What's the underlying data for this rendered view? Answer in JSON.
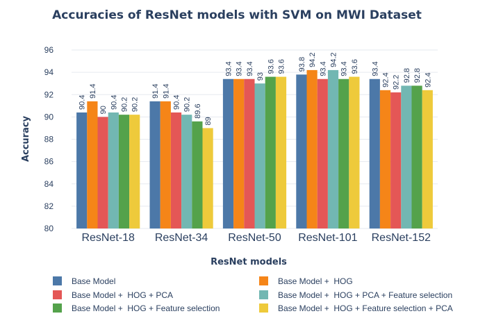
{
  "chart_data": {
    "type": "bar",
    "title": "Accuracies of ResNet models with SVM on MWI Dataset",
    "xlabel": "ResNet models",
    "ylabel": "Accuracy",
    "ylim": [
      80,
      96
    ],
    "yticks": [
      80,
      82,
      84,
      86,
      88,
      90,
      92,
      94,
      96
    ],
    "grid": true,
    "legend_position": "bottom",
    "categories": [
      "ResNet-18",
      "ResNet-34",
      "ResNet-50",
      "ResNet-101",
      "ResNet-152"
    ],
    "series": [
      {
        "name": "Base Model",
        "color": "#4c78a8",
        "values": [
          90.4,
          91.4,
          93.4,
          93.8,
          93.4
        ],
        "labels": [
          "90.4",
          "91.4",
          "93.4",
          "93.8",
          "93.4"
        ]
      },
      {
        "name": "Base Model +  HOG",
        "color": "#f58518",
        "values": [
          91.4,
          91.4,
          93.4,
          94.2,
          92.4
        ],
        "labels": [
          "91.4",
          "91.4",
          "93.4",
          "94.2",
          "92.4"
        ]
      },
      {
        "name": "Base Model +  HOG + PCA",
        "color": "#e45756",
        "values": [
          90,
          90.4,
          93.4,
          93.4,
          92.2
        ],
        "labels": [
          "90",
          "90.4",
          "93.4",
          "93.4",
          "92.2"
        ]
      },
      {
        "name": "Base Model +  HOG + PCA + Feature selection",
        "color": "#72b7b2",
        "values": [
          90.4,
          90.2,
          93,
          94.2,
          92.8
        ],
        "labels": [
          "90.4",
          "90.2",
          "93",
          "94.2",
          "92.8"
        ]
      },
      {
        "name": "Base Model +  HOG + Feature selection",
        "color": "#54a24b",
        "values": [
          90.2,
          89.6,
          93.6,
          93.4,
          92.8
        ],
        "labels": [
          "90.2",
          "89.6",
          "93.6",
          "93.4",
          "92.8"
        ]
      },
      {
        "name": "Base Model +  HOG + Feature selection + PCA",
        "color": "#eeca3b",
        "values": [
          90.2,
          89,
          93.6,
          93.6,
          92.4
        ],
        "labels": [
          "90.2",
          "89",
          "93.6",
          "93.6",
          "92.4"
        ]
      }
    ]
  }
}
